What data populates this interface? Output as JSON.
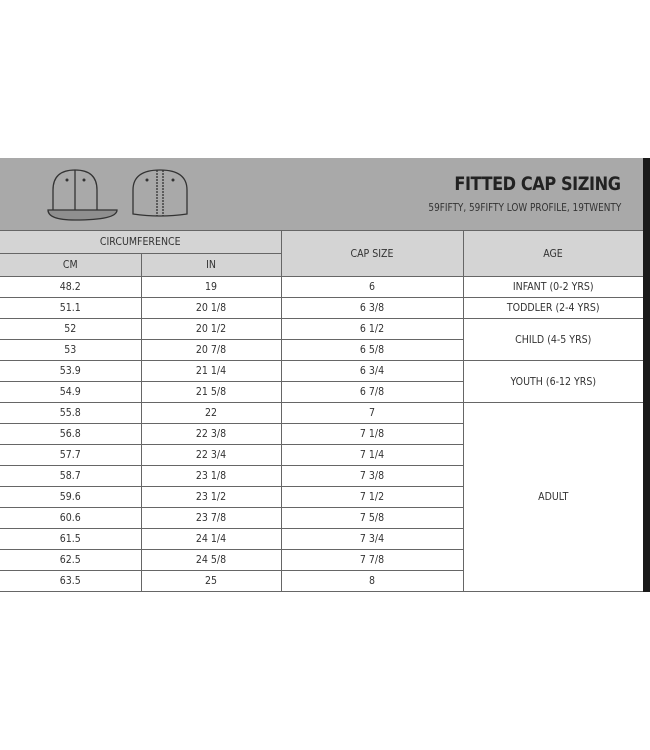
{
  "header": {
    "title": "FITTED CAP SIZING",
    "subtitle": "59FIFTY, 59FIFTY LOW PROFILE, 19TWENTY"
  },
  "columns": {
    "circumference": "CIRCUMFERENCE",
    "cm": "CM",
    "in": "IN",
    "cap_size": "CAP SIZE",
    "age": "AGE"
  },
  "rows": [
    {
      "cm": "48.2",
      "in": "19",
      "size": "6"
    },
    {
      "cm": "51.1",
      "in": "20 1/8",
      "size": "6 3/8"
    },
    {
      "cm": "52",
      "in": "20 1/2",
      "size": "6 1/2"
    },
    {
      "cm": "53",
      "in": "20 7/8",
      "size": "6 5/8"
    },
    {
      "cm": "53.9",
      "in": "21 1/4",
      "size": "6 3/4"
    },
    {
      "cm": "54.9",
      "in": "21 5/8",
      "size": "6 7/8"
    },
    {
      "cm": "55.8",
      "in": "22",
      "size": "7"
    },
    {
      "cm": "56.8",
      "in": "22 3/8",
      "size": "7 1/8"
    },
    {
      "cm": "57.7",
      "in": "22 3/4",
      "size": "7 1/4"
    },
    {
      "cm": "58.7",
      "in": "23 1/8",
      "size": "7 3/8"
    },
    {
      "cm": "59.6",
      "in": "23 1/2",
      "size": "7 1/2"
    },
    {
      "cm": "60.6",
      "in": "23 7/8",
      "size": "7 5/8"
    },
    {
      "cm": "61.5",
      "in": "24 1/4",
      "size": "7 3/4"
    },
    {
      "cm": "62.5",
      "in": "24 5/8",
      "size": "7 7/8"
    },
    {
      "cm": "63.5",
      "in": "25",
      "size": "8"
    }
  ],
  "age_groups": [
    {
      "label": "INFANT (0-2 YRS)",
      "rows": 1
    },
    {
      "label": "TODDLER (2-4 YRS)",
      "rows": 1
    },
    {
      "label": "CHILD (4-5 YRS)",
      "rows": 2
    },
    {
      "label": "YOUTH (6-12 YRS)",
      "rows": 2
    },
    {
      "label": "ADULT",
      "rows": 9
    }
  ]
}
